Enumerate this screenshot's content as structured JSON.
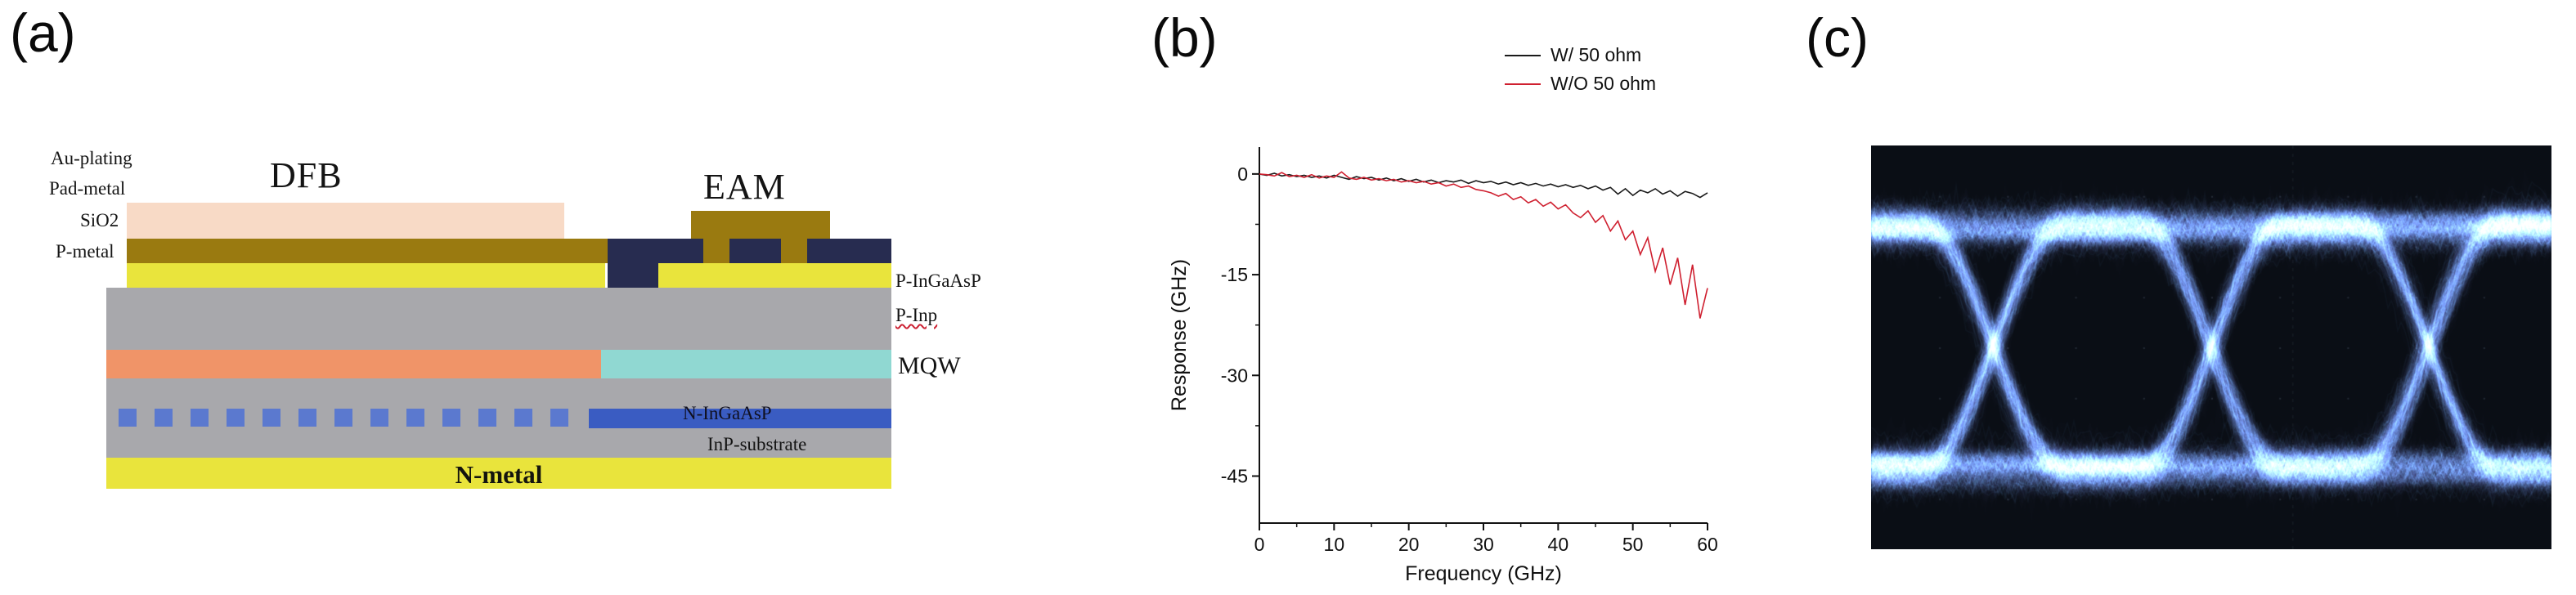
{
  "panels": {
    "a": "(a)",
    "b": "(b)",
    "c": "(c)"
  },
  "schematic": {
    "labels": {
      "au_plating": "Au-plating",
      "pad_metal": "Pad-metal",
      "sio2": "SiO2",
      "p_metal": "P-metal",
      "dfb": "DFB",
      "eam": "EAM",
      "p_ingaasp": "P-InGaAsP",
      "p_inp": "P-Inp",
      "mqw": "MQW",
      "n_ingaasp": "N-InGaAsP",
      "inp_substrate": "InP-substrate",
      "n_metal": "N-metal"
    },
    "colors": {
      "au_plating": "#f8dac6",
      "pad_metal": "#9a7a10",
      "sio2": "#272c50",
      "p_metal": "#e9e43c",
      "body": "#a8a8ac",
      "active_left": "#f09468",
      "active_right": "#90d8d2",
      "grating": "#5b79cf",
      "n_ingaasp": "#3a5cc2",
      "n_metal": "#e9e43c"
    },
    "grating": {
      "count": 13
    }
  },
  "chart_data": {
    "type": "line",
    "title": "",
    "xlabel": "Frequency (GHz)",
    "ylabel": "Response (GHz)",
    "xlim": [
      0,
      60
    ],
    "ylim": [
      -52,
      4
    ],
    "xticks": [
      0,
      10,
      20,
      30,
      40,
      50,
      60
    ],
    "xminor": [
      5,
      15,
      25,
      35,
      45,
      55
    ],
    "yticks": [
      0,
      -15,
      -30,
      -45
    ],
    "yminor": [
      -7.5,
      -22.5,
      -37.5
    ],
    "legend_position": "top-right",
    "series": [
      {
        "name": "W/ 50 ohm",
        "color": "#1a1a1a",
        "x": [
          0,
          1,
          2,
          3,
          4,
          5,
          6,
          7,
          8,
          9,
          10,
          11,
          12,
          13,
          14,
          15,
          16,
          17,
          18,
          19,
          20,
          21,
          22,
          23,
          24,
          25,
          26,
          27,
          28,
          29,
          30,
          31,
          32,
          33,
          34,
          35,
          36,
          37,
          38,
          39,
          40,
          41,
          42,
          43,
          44,
          45,
          46,
          47,
          48,
          49,
          50,
          51,
          52,
          53,
          54,
          55,
          56,
          57,
          58,
          59,
          60
        ],
        "y": [
          0.0,
          -0.2,
          0.1,
          -0.3,
          -0.1,
          -0.4,
          -0.2,
          -0.5,
          -0.3,
          -0.6,
          -0.2,
          -0.5,
          -0.8,
          -0.4,
          -0.7,
          -0.5,
          -0.9,
          -0.6,
          -1.0,
          -0.7,
          -1.1,
          -0.8,
          -1.2,
          -0.9,
          -1.3,
          -1.0,
          -1.2,
          -0.9,
          -1.4,
          -1.0,
          -1.3,
          -1.1,
          -1.5,
          -1.2,
          -1.6,
          -1.3,
          -1.7,
          -1.4,
          -1.8,
          -1.5,
          -1.9,
          -1.6,
          -2.0,
          -1.7,
          -2.2,
          -1.8,
          -2.4,
          -2.0,
          -3.0,
          -2.2,
          -3.2,
          -2.4,
          -2.8,
          -2.2,
          -3.0,
          -2.5,
          -3.3,
          -2.6,
          -2.9,
          -3.5,
          -2.8
        ]
      },
      {
        "name": "W/O 50 ohm",
        "color": "#cf2030",
        "x": [
          0,
          1,
          2,
          3,
          4,
          5,
          6,
          7,
          8,
          9,
          10,
          11,
          12,
          13,
          14,
          15,
          16,
          17,
          18,
          19,
          20,
          21,
          22,
          23,
          24,
          25,
          26,
          27,
          28,
          29,
          30,
          31,
          32,
          33,
          34,
          35,
          36,
          37,
          38,
          39,
          40,
          41,
          42,
          43,
          44,
          45,
          46,
          47,
          48,
          49,
          50,
          51,
          52,
          53,
          54,
          55,
          56,
          57,
          58,
          59,
          60
        ],
        "y": [
          0.0,
          -0.1,
          -0.3,
          0.2,
          -0.4,
          -0.2,
          -0.5,
          -0.1,
          -0.6,
          -0.3,
          -0.5,
          0.3,
          -0.6,
          -0.8,
          -0.5,
          -0.9,
          -0.7,
          -1.0,
          -0.8,
          -1.2,
          -1.0,
          -1.3,
          -1.1,
          -1.5,
          -1.3,
          -1.8,
          -1.5,
          -2.0,
          -1.8,
          -2.3,
          -2.5,
          -2.8,
          -3.3,
          -2.9,
          -3.8,
          -3.4,
          -4.3,
          -3.8,
          -4.8,
          -4.2,
          -5.2,
          -4.6,
          -5.8,
          -6.5,
          -5.5,
          -7.2,
          -6.2,
          -8.5,
          -7.0,
          -9.8,
          -8.5,
          -12.0,
          -9.5,
          -14.5,
          -11.0,
          -16.5,
          -12.5,
          -19.5,
          -13.5,
          -21.5,
          -17.0
        ]
      }
    ]
  },
  "eye_diagram": {
    "type": "eye",
    "background": "#0a0e15",
    "trace_color": "#4678b4",
    "grid_color": "#8296af"
  }
}
